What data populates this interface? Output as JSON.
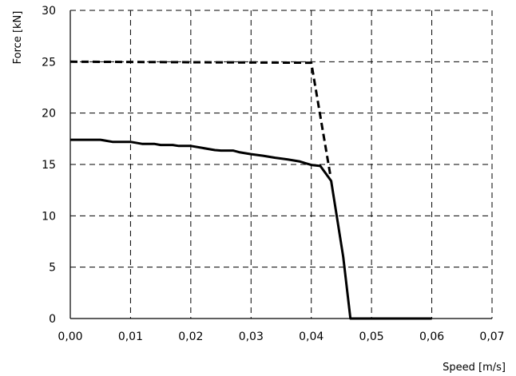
{
  "chart_data": {
    "type": "line",
    "title": "",
    "xlabel": "Speed [m/s]",
    "ylabel": "Force [kN]",
    "xlim": [
      0,
      0.07
    ],
    "ylim": [
      0,
      30
    ],
    "x_ticks": [
      "0,00",
      "0,01",
      "0,02",
      "0,03",
      "0,04",
      "0,05",
      "0,06",
      "0,07"
    ],
    "y_ticks": [
      "0",
      "5",
      "10",
      "15",
      "20",
      "25",
      "30"
    ],
    "grid": true,
    "legend": "none",
    "series": [
      {
        "style": "dashed",
        "color": "#000000",
        "points": [
          [
            0.0,
            25.0
          ],
          [
            0.04,
            24.9
          ],
          [
            0.0432,
            13.8
          ]
        ]
      },
      {
        "style": "solid",
        "color": "#000000",
        "points": [
          [
            0.0,
            17.4
          ],
          [
            0.005,
            17.4
          ],
          [
            0.007,
            17.2
          ],
          [
            0.01,
            17.2
          ],
          [
            0.012,
            17.0
          ],
          [
            0.014,
            17.0
          ],
          [
            0.015,
            16.9
          ],
          [
            0.017,
            16.9
          ],
          [
            0.018,
            16.8
          ],
          [
            0.02,
            16.8
          ],
          [
            0.022,
            16.6
          ],
          [
            0.024,
            16.4
          ],
          [
            0.025,
            16.35
          ],
          [
            0.027,
            16.35
          ],
          [
            0.028,
            16.2
          ],
          [
            0.03,
            16.0
          ],
          [
            0.032,
            15.85
          ],
          [
            0.034,
            15.65
          ],
          [
            0.036,
            15.5
          ],
          [
            0.038,
            15.3
          ],
          [
            0.04,
            14.95
          ],
          [
            0.0415,
            14.85
          ],
          [
            0.0433,
            13.4
          ],
          [
            0.0453,
            6.0
          ],
          [
            0.0465,
            0.0
          ],
          [
            0.05,
            0.0
          ],
          [
            0.06,
            0.0
          ]
        ]
      }
    ]
  }
}
